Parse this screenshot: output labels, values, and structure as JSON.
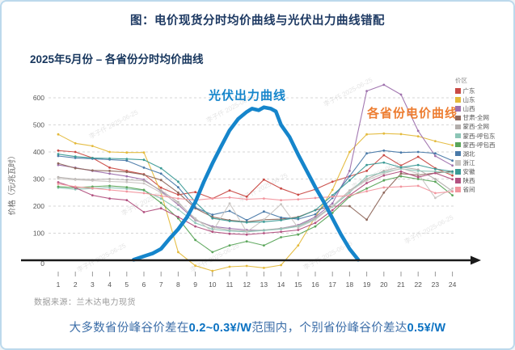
{
  "page": {
    "title_prefix": "图：电价现货分时均价曲线与光伏出力曲线",
    "title_bold": "错配",
    "subtitle": "2025年5月份 – 各省份分时均价曲线",
    "source": "数据来源：兰木达电力现货",
    "watermark": "李子仟 2025-06-25",
    "footnote": {
      "part1": "大多数省份峰谷价差在",
      "bold1": "0.2~0.3¥/W",
      "part2": "范围内，个别省份峰谷价差达",
      "bold2": "0.5¥/W"
    }
  },
  "chart_data": {
    "type": "line",
    "title": "2025年5月份 – 各省份分时均价曲线",
    "xlabel": "",
    "ylabel": "价格（元/兆瓦时）",
    "x": [
      1,
      2,
      3,
      4,
      5,
      6,
      7,
      8,
      9,
      10,
      11,
      12,
      13,
      14,
      15,
      16,
      17,
      18,
      19,
      20,
      21,
      22,
      23,
      24
    ],
    "yticks": [
      0,
      100,
      200,
      300,
      400,
      500,
      600
    ],
    "ylim": [
      -60,
      680
    ],
    "grid": "dashed-horizontal",
    "legend_title": "价区",
    "legend_position": "right",
    "annotations": [
      {
        "text": "光伏出力曲线",
        "color": "#1585cb"
      },
      {
        "text": "各省份电价曲线",
        "color": "#ed7d31"
      }
    ],
    "pv_curve": {
      "name": "光伏出力曲线",
      "color": "#1585cb",
      "points": [
        [
          5.4,
          2
        ],
        [
          6,
          15
        ],
        [
          6.5,
          25
        ],
        [
          7,
          42
        ],
        [
          7.5,
          80
        ],
        [
          8,
          115
        ],
        [
          8.5,
          158
        ],
        [
          9,
          215
        ],
        [
          9.5,
          290
        ],
        [
          10,
          358
        ],
        [
          10.5,
          420
        ],
        [
          11,
          480
        ],
        [
          11.5,
          522
        ],
        [
          12,
          548
        ],
        [
          12.3,
          560
        ],
        [
          12.7,
          554
        ],
        [
          13,
          565
        ],
        [
          13.4,
          560
        ],
        [
          13.7,
          550
        ],
        [
          14,
          500
        ],
        [
          14.5,
          455
        ],
        [
          15,
          390
        ],
        [
          15.5,
          330
        ],
        [
          16,
          270
        ],
        [
          16.5,
          215
        ],
        [
          17,
          155
        ],
        [
          17.5,
          95
        ],
        [
          18,
          42
        ],
        [
          18.5,
          2
        ]
      ]
    },
    "series": [
      {
        "name": "广东",
        "color": "#c94a45",
        "values": [
          405,
          400,
          378,
          342,
          330,
          318,
          268,
          242,
          252,
          228,
          258,
          235,
          298,
          265,
          242,
          262,
          290,
          310,
          330,
          388,
          350,
          382,
          340,
          313
        ]
      },
      {
        "name": "山东",
        "color": "#e4ba3c",
        "values": [
          465,
          432,
          422,
          400,
          398,
          398,
          250,
          30,
          -20,
          -39,
          -24,
          -21,
          -28,
          -18,
          55,
          160,
          260,
          400,
          465,
          468,
          466,
          458,
          440,
          425
        ]
      },
      {
        "name": "山西",
        "color": "#9e71ad",
        "values": [
          352,
          342,
          330,
          320,
          310,
          298,
          255,
          205,
          148,
          125,
          118,
          112,
          110,
          118,
          130,
          160,
          210,
          330,
          625,
          648,
          612,
          478,
          385,
          350
        ]
      },
      {
        "name": "甘肃-全网",
        "color": "#8f685c",
        "values": [
          358,
          340,
          332,
          330,
          326,
          316,
          296,
          250,
          192,
          160,
          148,
          142,
          150,
          152,
          160,
          185,
          200,
          200,
          150,
          250,
          320,
          315,
          322,
          328
        ]
      },
      {
        "name": "蒙西-全网",
        "color": "#b3aeac",
        "values": [
          307,
          300,
          298,
          300,
          297,
          294,
          258,
          215,
          150,
          122,
          112,
          108,
          112,
          118,
          128,
          155,
          200,
          258,
          300,
          330,
          345,
          335,
          300,
          255
        ]
      },
      {
        "name": "蒙西-呼包东",
        "color": "#8cc5b6",
        "values": [
          268,
          262,
          265,
          268,
          264,
          258,
          228,
          188,
          138,
          115,
          108,
          105,
          110,
          115,
          125,
          152,
          198,
          250,
          310,
          325,
          338,
          330,
          328,
          322
        ]
      },
      {
        "name": "蒙西-呼包西",
        "color": "#5aa55a",
        "values": [
          272,
          268,
          272,
          275,
          270,
          260,
          212,
          155,
          75,
          30,
          55,
          70,
          55,
          85,
          95,
          125,
          175,
          235,
          265,
          295,
          310,
          300,
          290,
          240
        ]
      },
      {
        "name": "湖北",
        "color": "#4a7aa9",
        "values": [
          385,
          378,
          375,
          372,
          368,
          342,
          320,
          270,
          195,
          168,
          182,
          148,
          180,
          158,
          152,
          170,
          230,
          310,
          395,
          405,
          398,
          400,
          395,
          368
        ]
      },
      {
        "name": "浙江",
        "color": "#c9c5c2",
        "values": [
          302,
          297,
          294,
          291,
          289,
          284,
          250,
          210,
          155,
          105,
          210,
          105,
          150,
          207,
          120,
          150,
          200,
          255,
          295,
          320,
          340,
          320,
          230,
          265
        ]
      },
      {
        "name": "安徽",
        "color": "#3b9a96",
        "values": [
          392,
          383,
          378,
          376,
          374,
          371,
          340,
          290,
          215,
          155,
          145,
          140,
          142,
          148,
          158,
          185,
          240,
          295,
          352,
          361,
          343,
          352,
          337,
          328
        ]
      },
      {
        "name": "陕西",
        "color": "#b25180",
        "values": [
          288,
          268,
          240,
          228,
          222,
          178,
          192,
          160,
          125,
          105,
          98,
          95,
          100,
          105,
          112,
          138,
          185,
          240,
          285,
          313,
          328,
          307,
          322,
          299
        ]
      },
      {
        "name": "省间",
        "color": "#f2969f",
        "values": [
          282,
          272,
          266,
          260,
          254,
          248,
          238,
          228,
          222,
          228,
          232,
          225,
          228,
          222,
          225,
          230,
          235,
          239,
          255,
          269,
          272,
          275,
          248,
          254
        ]
      }
    ]
  }
}
